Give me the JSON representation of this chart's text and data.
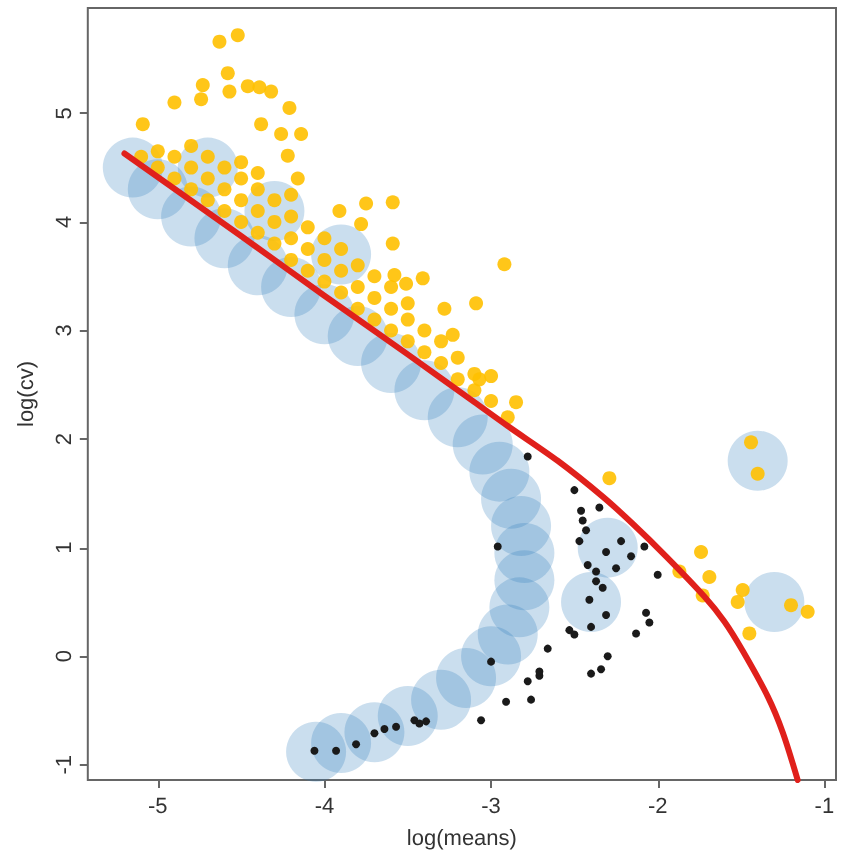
{
  "chart_data": {
    "type": "scatter",
    "xlabel": "log(means)",
    "ylabel": "log(cv)",
    "xlim": [
      -5.42,
      -0.93
    ],
    "ylim": [
      -1.14,
      5.97
    ],
    "xticks": [
      -5,
      -4,
      -3,
      -2,
      -1
    ],
    "yticks": [
      -1,
      0,
      1,
      2,
      3,
      4,
      5
    ],
    "grid": false,
    "marker": "circle",
    "series": [
      {
        "color": "#2b7bba",
        "x": [
          -5.15,
          -5.0,
          -4.8,
          -4.6,
          -4.4,
          -4.2,
          -4.0,
          -3.8,
          -3.6,
          -3.4,
          -3.2,
          -3.05,
          -2.95,
          -2.88,
          -2.82,
          -2.8,
          -2.8,
          -2.83,
          -2.9,
          -3.0,
          -3.15,
          -3.3,
          -3.5,
          -3.7,
          -3.9,
          -4.05,
          -2.4,
          -2.3,
          -1.4,
          -1.3,
          -4.7,
          -4.3,
          -3.9
        ],
        "values": [
          4.5,
          4.3,
          4.05,
          3.85,
          3.6,
          3.4,
          3.15,
          2.95,
          2.7,
          2.45,
          2.2,
          1.95,
          1.7,
          1.45,
          1.2,
          0.95,
          0.7,
          0.45,
          0.2,
          0.0,
          -0.2,
          -0.4,
          -0.55,
          -0.7,
          -0.8,
          -0.88,
          0.5,
          1.0,
          1.8,
          0.5,
          4.5,
          4.1,
          3.7
        ]
      },
      {
        "color": "#1a1a1a",
        "x": [
          -4.06,
          -3.93,
          -3.81,
          -3.7,
          -3.64,
          -3.57,
          -3.46,
          -3.43,
          -3.39,
          -3.06,
          -2.91,
          -2.76,
          -2.78,
          -2.71,
          -2.71,
          -3.0,
          -2.66,
          -2.53,
          -2.5,
          -2.4,
          -2.4,
          -2.34,
          -2.3,
          -2.31,
          -2.41,
          -2.37,
          -2.33,
          -2.37,
          -2.42,
          -2.47,
          -2.43,
          -2.45,
          -2.46,
          -2.5,
          -2.78,
          -2.96,
          -2.35,
          -2.31,
          -2.25,
          -2.16,
          -2.22,
          -2.08,
          -2.0,
          -2.07,
          -2.05,
          -2.13
        ],
        "values": [
          -0.87,
          -0.87,
          -0.81,
          -0.71,
          -0.67,
          -0.65,
          -0.59,
          -0.62,
          -0.6,
          -0.59,
          -0.42,
          -0.4,
          -0.23,
          -0.18,
          -0.14,
          -0.05,
          0.07,
          0.24,
          0.2,
          0.27,
          -0.16,
          -0.12,
          0.0,
          0.38,
          0.52,
          0.69,
          0.63,
          0.78,
          0.84,
          1.06,
          1.16,
          1.25,
          1.34,
          1.53,
          1.84,
          1.01,
          1.37,
          0.96,
          0.81,
          0.92,
          1.06,
          1.01,
          0.75,
          0.4,
          0.31,
          0.21
        ]
      },
      {
        "color": "#ffc000",
        "x": [
          -5.1,
          -5.0,
          -5.0,
          -4.9,
          -4.9,
          -4.8,
          -4.8,
          -4.8,
          -4.7,
          -4.7,
          -4.7,
          -4.6,
          -4.6,
          -4.6,
          -4.5,
          -4.5,
          -4.5,
          -4.5,
          -4.4,
          -4.4,
          -4.4,
          -4.4,
          -4.3,
          -4.3,
          -4.3,
          -4.2,
          -4.2,
          -4.2,
          -4.2,
          -4.1,
          -4.1,
          -4.1,
          -4.0,
          -4.0,
          -4.0,
          -3.9,
          -3.9,
          -3.9,
          -3.8,
          -3.8,
          -3.8,
          -3.7,
          -3.7,
          -3.7,
          -3.6,
          -3.6,
          -3.6,
          -3.5,
          -3.5,
          -3.5,
          -3.4,
          -3.4,
          -3.3,
          -3.3,
          -3.2,
          -3.2,
          -3.1,
          -3.1,
          -3.0,
          -2.9,
          -4.63,
          -4.52,
          -4.9,
          -5.09,
          -4.73,
          -4.74,
          -4.58,
          -4.57,
          -4.46,
          -4.39,
          -4.32,
          -4.21,
          -4.38,
          -4.26,
          -4.14,
          -4.22,
          -4.16,
          -3.75,
          -3.59,
          -3.91,
          -3.78,
          -3.59,
          -3.41,
          -3.51,
          -3.58,
          -3.28,
          -3.09,
          -2.92,
          -3.23,
          -3.07,
          -3.0,
          -2.85,
          -2.29,
          -1.44,
          -1.4,
          -1.74,
          -1.69,
          -1.87,
          -1.73,
          -1.49,
          -1.52,
          -1.45,
          -1.2,
          -1.1
        ],
        "values": [
          4.6,
          4.5,
          4.65,
          4.4,
          4.6,
          4.3,
          4.5,
          4.7,
          4.2,
          4.4,
          4.6,
          4.1,
          4.3,
          4.5,
          4.0,
          4.2,
          4.4,
          4.55,
          3.9,
          4.1,
          4.3,
          4.45,
          3.8,
          4.0,
          4.2,
          3.65,
          3.85,
          4.05,
          4.25,
          3.55,
          3.75,
          3.95,
          3.45,
          3.65,
          3.85,
          3.35,
          3.55,
          3.75,
          3.2,
          3.4,
          3.6,
          3.1,
          3.3,
          3.5,
          3.0,
          3.2,
          3.4,
          2.9,
          3.1,
          3.25,
          2.8,
          3.0,
          2.7,
          2.9,
          2.55,
          2.75,
          2.45,
          2.6,
          2.35,
          2.2,
          5.66,
          5.72,
          5.1,
          4.9,
          5.26,
          5.13,
          5.37,
          5.2,
          5.25,
          5.24,
          5.2,
          5.05,
          4.9,
          4.81,
          4.81,
          4.61,
          4.4,
          4.17,
          4.18,
          4.1,
          3.98,
          3.8,
          3.48,
          3.43,
          3.51,
          3.2,
          3.25,
          3.61,
          2.96,
          2.55,
          2.58,
          2.34,
          1.64,
          1.97,
          1.68,
          0.96,
          0.73,
          0.78,
          0.56,
          0.61,
          0.5,
          0.21,
          0.47,
          0.41
        ]
      },
      {
        "type": "line",
        "marker": "none",
        "color": "#e0201b",
        "x": [
          -5.2,
          -4.5,
          -4.0,
          -3.5,
          -3.1,
          -2.9,
          -2.6,
          -2.33,
          -2.15,
          -1.95,
          -1.72,
          -1.6,
          -1.49,
          -1.34,
          -1.25,
          -1.16
        ],
        "values": [
          4.63,
          3.87,
          3.32,
          2.78,
          2.34,
          2.12,
          1.8,
          1.47,
          1.22,
          0.92,
          0.55,
          0.32,
          0.05,
          -0.37,
          -0.7,
          -1.14
        ]
      }
    ]
  }
}
